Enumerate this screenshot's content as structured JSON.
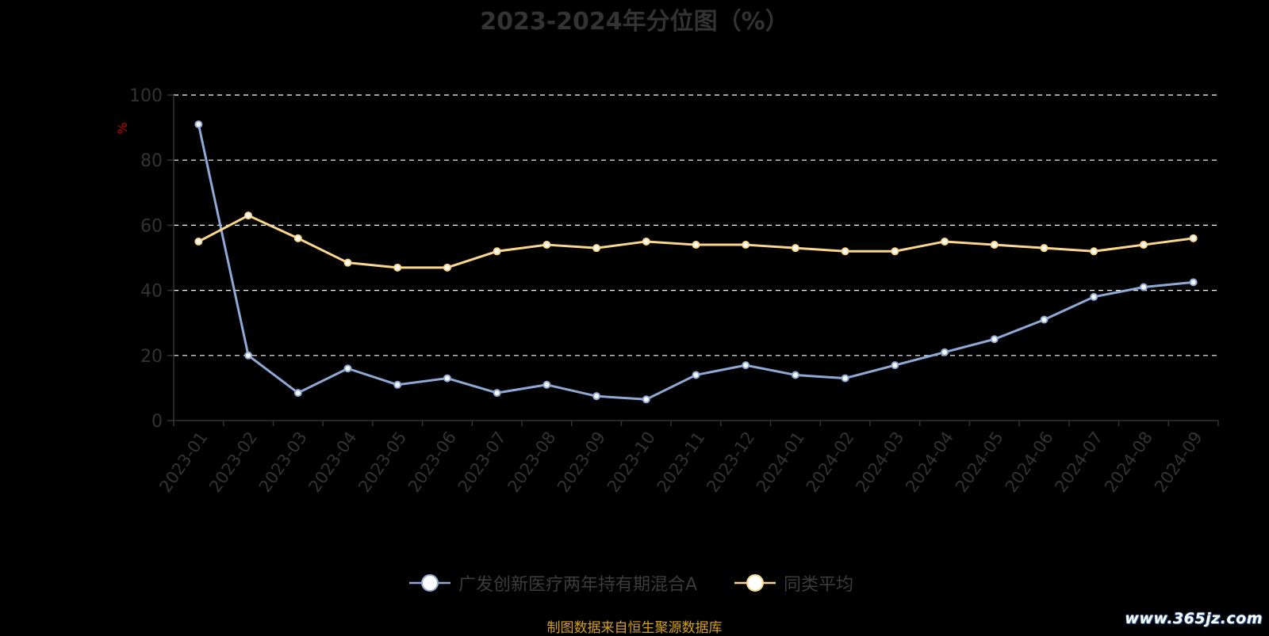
{
  "chart_data": {
    "type": "line",
    "title": "2023-2024年分位图（%）",
    "ylabel": "%",
    "ylim": [
      0,
      100
    ],
    "yticks": [
      0,
      20,
      40,
      60,
      80,
      100
    ],
    "grid": true,
    "legend_position": "bottom",
    "categories": [
      "2023-01",
      "2023-02",
      "2023-03",
      "2023-04",
      "2023-05",
      "2023-06",
      "2023-07",
      "2023-08",
      "2023-09",
      "2023-10",
      "2023-11",
      "2023-12",
      "2024-01",
      "2024-02",
      "2024-03",
      "2024-04",
      "2024-05",
      "2024-06",
      "2024-07",
      "2024-08",
      "2024-09"
    ],
    "series": [
      {
        "name": "广发创新医疗两年持有期混合A",
        "color": "#8fa9d6",
        "values": [
          91,
          20,
          8.5,
          16,
          11,
          13,
          8.5,
          11,
          7.5,
          6.5,
          14,
          17,
          14,
          13,
          17,
          21,
          25,
          31,
          38,
          41,
          42.5
        ]
      },
      {
        "name": "同类平均",
        "color": "#fbd68d",
        "values": [
          55,
          63,
          56,
          48.5,
          47,
          47,
          52,
          54,
          53,
          55,
          54,
          54,
          53,
          52,
          52,
          55,
          54,
          53,
          52,
          54,
          56
        ]
      }
    ]
  },
  "footer": {
    "source": "制图数据来自恒生聚源数据库",
    "watermark": "www.365jz.com"
  },
  "colors": {
    "background": "#000000",
    "axis": "#333333",
    "grid": "#ffffff",
    "ylabel": "#cc0000",
    "source": "#d4a017"
  }
}
